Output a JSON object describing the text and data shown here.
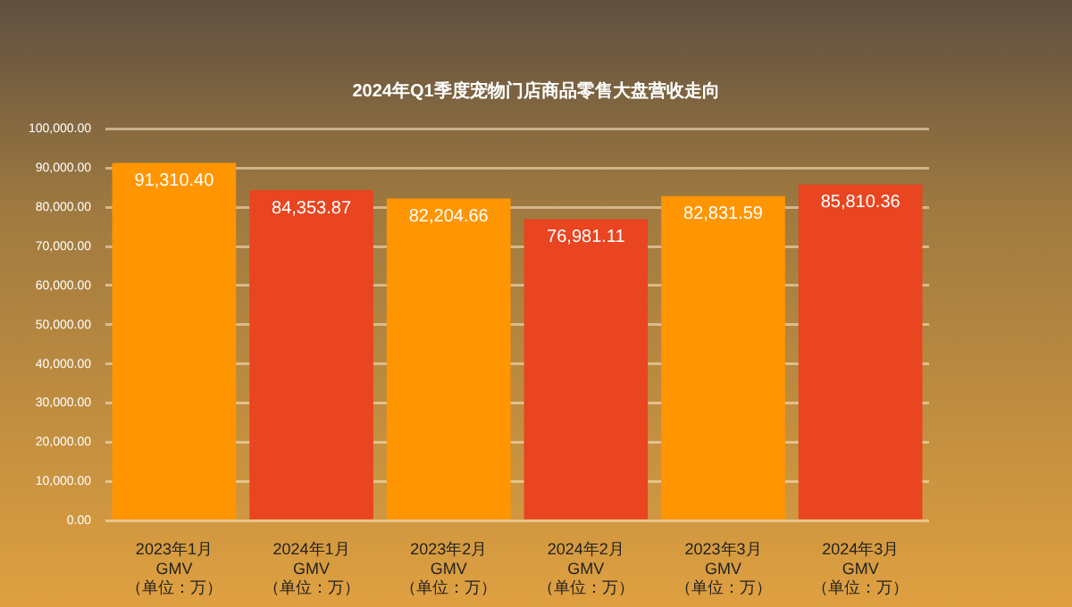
{
  "chart_data": {
    "type": "bar",
    "title": "2024年Q1季度宠物门店商品零售大盘营收走向",
    "categories": [
      "2023年1月\nGMV\n（单位：万）",
      "2024年1月\nGMV\n（单位：万）",
      "2023年2月\nGMV\n（单位：万）",
      "2024年2月\nGMV\n（单位：万）",
      "2023年3月\nGMV\n（单位：万）",
      "2024年3月\nGMV\n（单位：万）"
    ],
    "values": [
      91310.4,
      84353.87,
      82204.66,
      76981.11,
      82831.59,
      85810.36
    ],
    "colors": [
      "#ff9500",
      "#e84520",
      "#ff9500",
      "#e84520",
      "#ff9500",
      "#e84520"
    ],
    "value_labels": [
      "91,310.40",
      "84,353.87",
      "82,204.66",
      "76,981.11",
      "82,831.59",
      "85,810.36"
    ],
    "ylim": [
      0,
      100000
    ],
    "yticks": [
      {
        "value": 0,
        "label": "0.00"
      },
      {
        "value": 10000,
        "label": "10,000.00"
      },
      {
        "value": 20000,
        "label": "20,000.00"
      },
      {
        "value": 30000,
        "label": "30,000.00"
      },
      {
        "value": 40000,
        "label": "40,000.00"
      },
      {
        "value": 50000,
        "label": "50,000.00"
      },
      {
        "value": 60000,
        "label": "60,000.00"
      },
      {
        "value": 70000,
        "label": "70,000.00"
      },
      {
        "value": 80000,
        "label": "80,000.00"
      },
      {
        "value": 90000,
        "label": "90,000.00"
      },
      {
        "value": 100000,
        "label": "100,000.00"
      }
    ],
    "grid": "y",
    "legend": false
  }
}
